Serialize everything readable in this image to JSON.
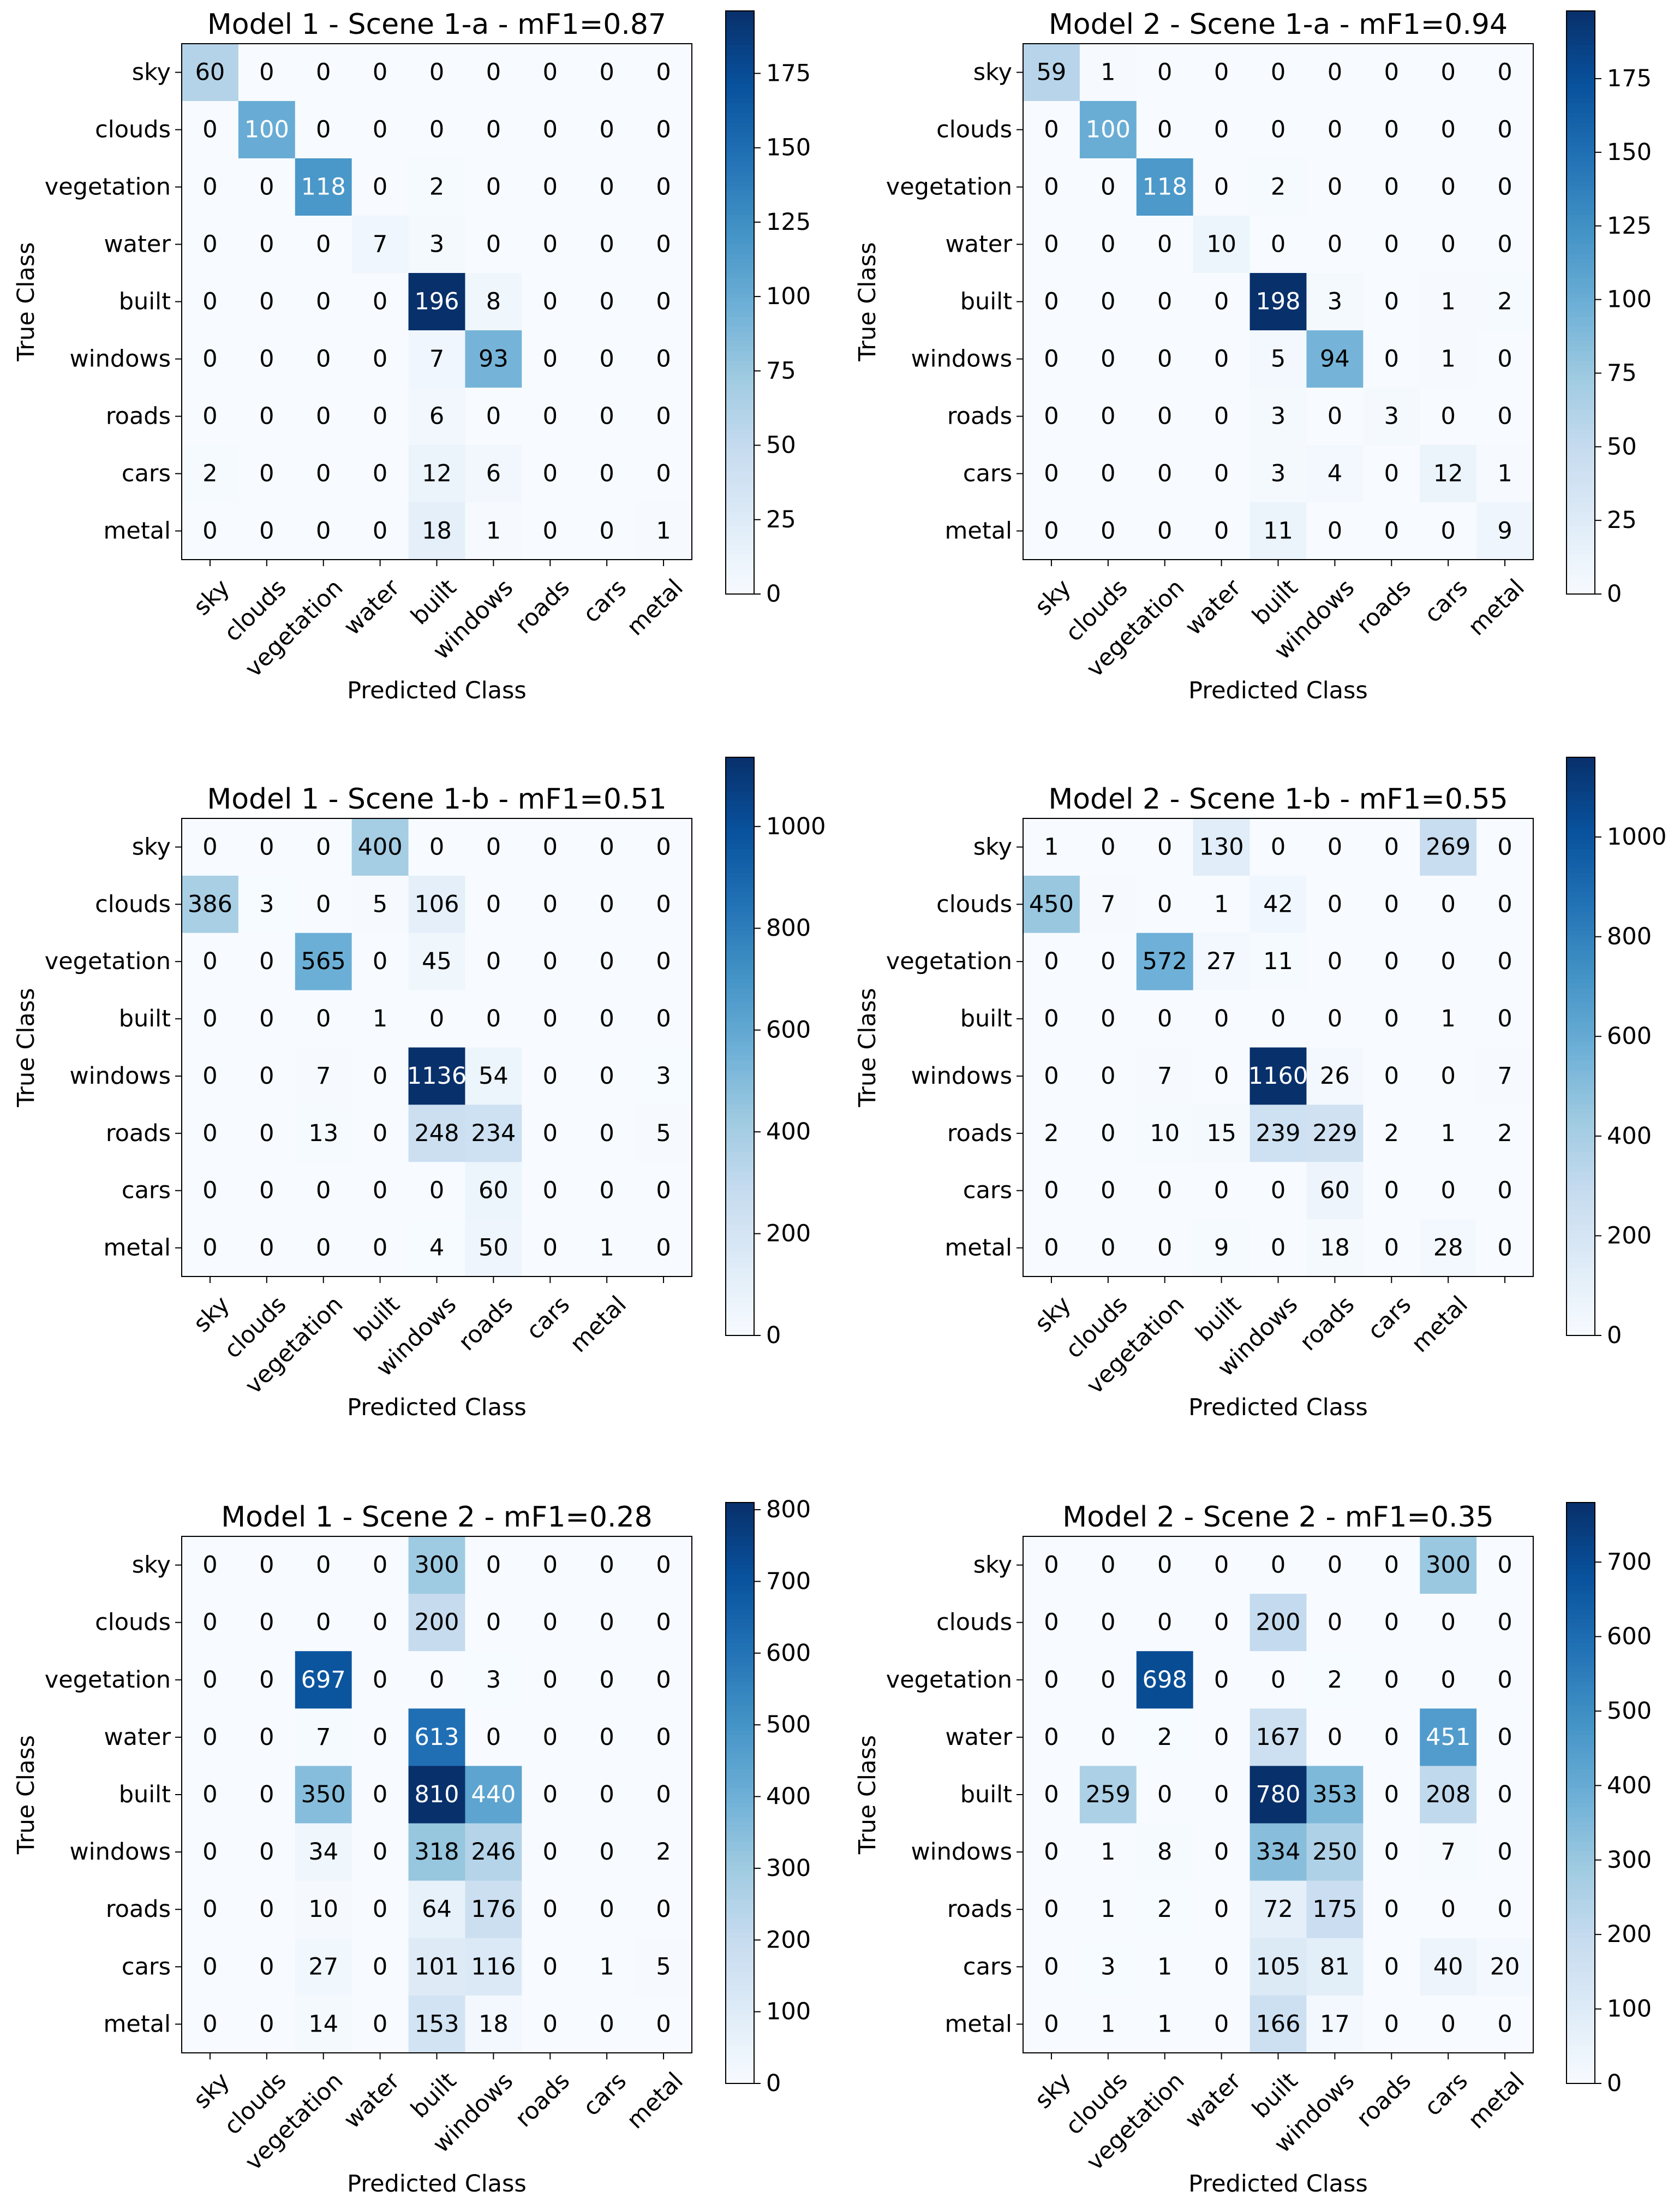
{
  "chart_data": [
    {
      "type": "heatmap",
      "title": "Model 1 - Scene 1-a - mF1=0.87",
      "xlabel": "Predicted Class",
      "ylabel": "True Class",
      "row_labels": [
        "sky",
        "clouds",
        "vegetation",
        "water",
        "built",
        "windows",
        "roads",
        "cars",
        "metal"
      ],
      "col_labels": [
        "sky",
        "clouds",
        "vegetation",
        "water",
        "built",
        "windows",
        "roads",
        "cars",
        "metal"
      ],
      "values": [
        [
          60,
          0,
          0,
          0,
          0,
          0,
          0,
          0,
          0
        ],
        [
          0,
          100,
          0,
          0,
          0,
          0,
          0,
          0,
          0
        ],
        [
          0,
          0,
          118,
          0,
          2,
          0,
          0,
          0,
          0
        ],
        [
          0,
          0,
          0,
          7,
          3,
          0,
          0,
          0,
          0
        ],
        [
          0,
          0,
          0,
          0,
          196,
          8,
          0,
          0,
          0
        ],
        [
          0,
          0,
          0,
          0,
          7,
          93,
          0,
          0,
          0
        ],
        [
          0,
          0,
          0,
          0,
          6,
          0,
          0,
          0,
          0
        ],
        [
          2,
          0,
          0,
          0,
          12,
          6,
          0,
          0,
          0
        ],
        [
          0,
          0,
          0,
          0,
          18,
          1,
          0,
          0,
          1
        ]
      ],
      "colorbar": {
        "min": 0,
        "max": 196,
        "ticks": [
          0,
          25,
          50,
          75,
          100,
          125,
          150,
          175
        ]
      },
      "colormap": "Blues"
    },
    {
      "type": "heatmap",
      "title": "Model 2 - Scene 1-a - mF1=0.94",
      "xlabel": "Predicted Class",
      "ylabel": "True Class",
      "row_labels": [
        "sky",
        "clouds",
        "vegetation",
        "water",
        "built",
        "windows",
        "roads",
        "cars",
        "metal"
      ],
      "col_labels": [
        "sky",
        "clouds",
        "vegetation",
        "water",
        "built",
        "windows",
        "roads",
        "cars",
        "metal"
      ],
      "values": [
        [
          59,
          1,
          0,
          0,
          0,
          0,
          0,
          0,
          0
        ],
        [
          0,
          100,
          0,
          0,
          0,
          0,
          0,
          0,
          0
        ],
        [
          0,
          0,
          118,
          0,
          2,
          0,
          0,
          0,
          0
        ],
        [
          0,
          0,
          0,
          10,
          0,
          0,
          0,
          0,
          0
        ],
        [
          0,
          0,
          0,
          0,
          198,
          3,
          0,
          1,
          2
        ],
        [
          0,
          0,
          0,
          0,
          5,
          94,
          0,
          1,
          0
        ],
        [
          0,
          0,
          0,
          0,
          3,
          0,
          3,
          0,
          0
        ],
        [
          0,
          0,
          0,
          0,
          3,
          4,
          0,
          12,
          1
        ],
        [
          0,
          0,
          0,
          0,
          11,
          0,
          0,
          0,
          9
        ]
      ],
      "colorbar": {
        "min": 0,
        "max": 198,
        "ticks": [
          0,
          25,
          50,
          75,
          100,
          125,
          150,
          175
        ]
      },
      "colormap": "Blues"
    },
    {
      "type": "heatmap",
      "title": "Model 1 - Scene 1-b - mF1=0.51",
      "xlabel": "Predicted Class",
      "ylabel": "True Class",
      "row_labels": [
        "sky",
        "clouds",
        "vegetation",
        "built",
        "windows",
        "roads",
        "cars",
        "metal"
      ],
      "col_labels": [
        "sky",
        "clouds",
        "vegetation",
        "built",
        "windows",
        "roads",
        "cars",
        "metal",
        ""
      ],
      "values": [
        [
          0,
          0,
          0,
          400,
          0,
          0,
          0,
          0,
          0
        ],
        [
          386,
          3,
          0,
          5,
          106,
          0,
          0,
          0,
          0
        ],
        [
          0,
          0,
          565,
          0,
          45,
          0,
          0,
          0,
          0
        ],
        [
          0,
          0,
          0,
          1,
          0,
          0,
          0,
          0,
          0
        ],
        [
          0,
          0,
          7,
          0,
          1136,
          54,
          0,
          0,
          3
        ],
        [
          0,
          0,
          13,
          0,
          248,
          234,
          0,
          0,
          5
        ],
        [
          0,
          0,
          0,
          0,
          0,
          60,
          0,
          0,
          0
        ],
        [
          0,
          0,
          0,
          0,
          4,
          50,
          0,
          1,
          0
        ]
      ],
      "colorbar": {
        "min": 0,
        "max": 1136,
        "ticks": [
          0,
          200,
          400,
          600,
          800,
          1000
        ]
      },
      "colormap": "Blues"
    },
    {
      "type": "heatmap",
      "title": "Model 2 - Scene 1-b - mF1=0.55",
      "xlabel": "Predicted Class",
      "ylabel": "True Class",
      "row_labels": [
        "sky",
        "clouds",
        "vegetation",
        "built",
        "windows",
        "roads",
        "cars",
        "metal"
      ],
      "col_labels": [
        "sky",
        "clouds",
        "vegetation",
        "built",
        "windows",
        "roads",
        "cars",
        "metal",
        ""
      ],
      "values": [
        [
          1,
          0,
          0,
          130,
          0,
          0,
          0,
          269,
          0
        ],
        [
          450,
          7,
          0,
          1,
          42,
          0,
          0,
          0,
          0
        ],
        [
          0,
          0,
          572,
          27,
          11,
          0,
          0,
          0,
          0
        ],
        [
          0,
          0,
          0,
          0,
          0,
          0,
          0,
          1,
          0
        ],
        [
          0,
          0,
          7,
          0,
          1160,
          26,
          0,
          0,
          7
        ],
        [
          2,
          0,
          10,
          15,
          239,
          229,
          2,
          1,
          2
        ],
        [
          0,
          0,
          0,
          0,
          0,
          60,
          0,
          0,
          0
        ],
        [
          0,
          0,
          0,
          9,
          0,
          18,
          0,
          28,
          0
        ]
      ],
      "colorbar": {
        "min": 0,
        "max": 1160,
        "ticks": [
          0,
          200,
          400,
          600,
          800,
          1000
        ]
      },
      "colormap": "Blues"
    },
    {
      "type": "heatmap",
      "title": "Model 1 - Scene 2 - mF1=0.28",
      "xlabel": "Predicted Class",
      "ylabel": "True Class",
      "row_labels": [
        "sky",
        "clouds",
        "vegetation",
        "water",
        "built",
        "windows",
        "roads",
        "cars",
        "metal"
      ],
      "col_labels": [
        "sky",
        "clouds",
        "vegetation",
        "water",
        "built",
        "windows",
        "roads",
        "cars",
        "metal"
      ],
      "values": [
        [
          0,
          0,
          0,
          0,
          300,
          0,
          0,
          0,
          0
        ],
        [
          0,
          0,
          0,
          0,
          200,
          0,
          0,
          0,
          0
        ],
        [
          0,
          0,
          697,
          0,
          0,
          3,
          0,
          0,
          0
        ],
        [
          0,
          0,
          7,
          0,
          613,
          0,
          0,
          0,
          0
        ],
        [
          0,
          0,
          350,
          0,
          810,
          440,
          0,
          0,
          0
        ],
        [
          0,
          0,
          34,
          0,
          318,
          246,
          0,
          0,
          2
        ],
        [
          0,
          0,
          10,
          0,
          64,
          176,
          0,
          0,
          0
        ],
        [
          0,
          0,
          27,
          0,
          101,
          116,
          0,
          1,
          5
        ],
        [
          0,
          0,
          14,
          0,
          153,
          18,
          0,
          0,
          0
        ]
      ],
      "colorbar": {
        "min": 0,
        "max": 810,
        "ticks": [
          0,
          100,
          200,
          300,
          400,
          500,
          600,
          700,
          800
        ]
      },
      "colormap": "Blues"
    },
    {
      "type": "heatmap",
      "title": "Model 2 - Scene 2 - mF1=0.35",
      "xlabel": "Predicted Class",
      "ylabel": "True Class",
      "row_labels": [
        "sky",
        "clouds",
        "vegetation",
        "water",
        "built",
        "windows",
        "roads",
        "cars",
        "metal"
      ],
      "col_labels": [
        "sky",
        "clouds",
        "vegetation",
        "water",
        "built",
        "windows",
        "roads",
        "cars",
        "metal"
      ],
      "values": [
        [
          0,
          0,
          0,
          0,
          0,
          0,
          0,
          300,
          0
        ],
        [
          0,
          0,
          0,
          0,
          200,
          0,
          0,
          0,
          0
        ],
        [
          0,
          0,
          698,
          0,
          0,
          2,
          0,
          0,
          0
        ],
        [
          0,
          0,
          2,
          0,
          167,
          0,
          0,
          451,
          0
        ],
        [
          0,
          259,
          0,
          0,
          780,
          353,
          0,
          208,
          0
        ],
        [
          0,
          1,
          8,
          0,
          334,
          250,
          0,
          7,
          0
        ],
        [
          0,
          1,
          2,
          0,
          72,
          175,
          0,
          0,
          0
        ],
        [
          0,
          3,
          1,
          0,
          105,
          81,
          0,
          40,
          20
        ],
        [
          0,
          1,
          1,
          0,
          166,
          17,
          0,
          0,
          0
        ]
      ],
      "colorbar": {
        "min": 0,
        "max": 780,
        "ticks": [
          0,
          100,
          200,
          300,
          400,
          500,
          600,
          700
        ]
      },
      "colormap": "Blues"
    }
  ]
}
